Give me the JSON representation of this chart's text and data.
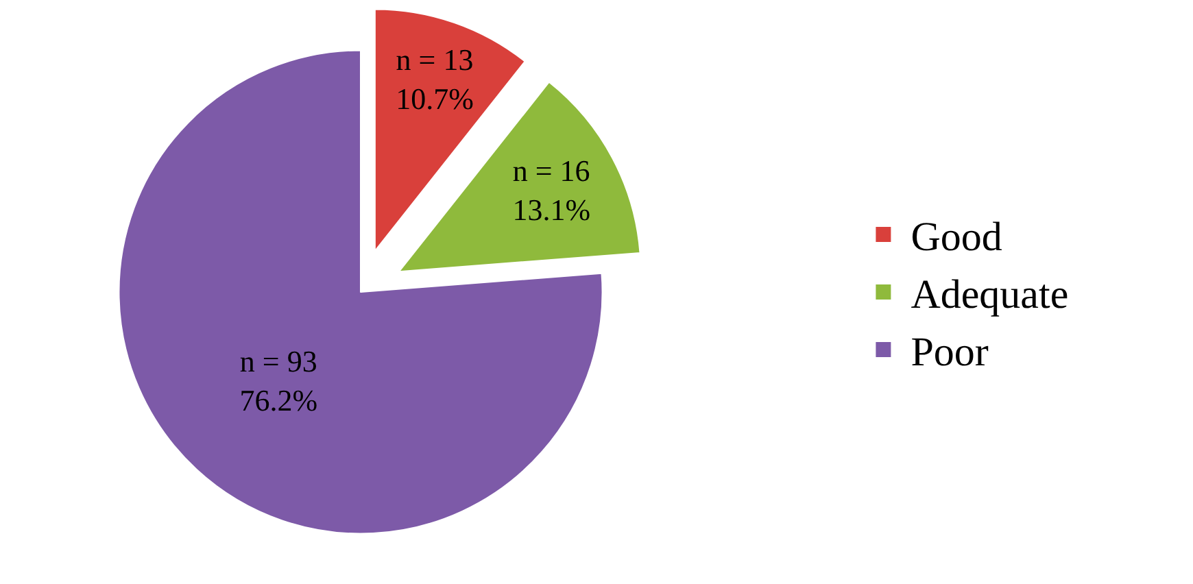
{
  "chart_data": {
    "type": "pie",
    "categories": [
      "Good",
      "Adequate",
      "Poor"
    ],
    "values": [
      13,
      16,
      93
    ],
    "colors": [
      "#d9403b",
      "#8fba3c",
      "#7d5aa8"
    ],
    "value_labels": [
      "n = 13\n10.7%",
      "n = 16\n13.1%",
      "n = 93\n76.2%"
    ],
    "legend": "right"
  }
}
